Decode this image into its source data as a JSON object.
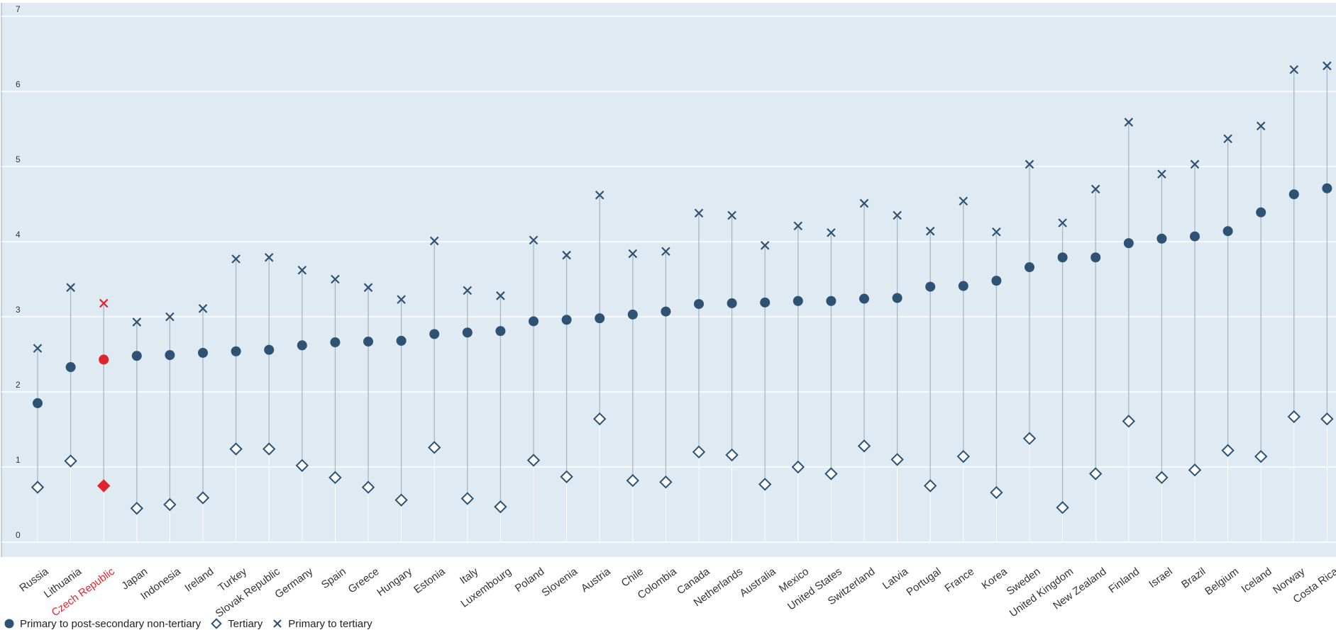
{
  "chart_data": {
    "type": "scatter",
    "ylim": [
      0,
      7
    ],
    "y_ticks": [
      0,
      1,
      2,
      3,
      4,
      5,
      6,
      7
    ],
    "grid": true,
    "categories": [
      "Russia",
      "Lithuania",
      "Czech Republic",
      "Japan",
      "Indonesia",
      "Ireland",
      "Turkey",
      "Slovak Republic",
      "Germany",
      "Spain",
      "Greece",
      "Hungary",
      "Estonia",
      "Italy",
      "Luxembourg",
      "Poland",
      "Slovenia",
      "Austria",
      "Chile",
      "Colombia",
      "Canada",
      "Netherlands",
      "Australia",
      "Mexico",
      "United States",
      "Switzerland",
      "Latvia",
      "Portugal",
      "France",
      "Korea",
      "Sweden",
      "United Kingdom",
      "New Zealand",
      "Finland",
      "Israel",
      "Brazil",
      "Belgium",
      "Iceland",
      "Norway",
      "Costa Rica"
    ],
    "highlight_category": "Czech Republic",
    "series": [
      {
        "name": "Primary to post-secondary non-tertiary",
        "marker": "circle",
        "values": [
          1.85,
          2.33,
          2.43,
          2.48,
          2.49,
          2.52,
          2.54,
          2.56,
          2.62,
          2.66,
          2.67,
          2.68,
          2.77,
          2.79,
          2.81,
          2.94,
          2.96,
          2.98,
          3.03,
          3.07,
          3.17,
          3.18,
          3.19,
          3.21,
          3.21,
          3.24,
          3.25,
          3.4,
          3.41,
          3.48,
          3.66,
          3.79,
          3.79,
          3.98,
          4.04,
          4.07,
          4.14,
          4.39,
          4.63,
          4.71
        ]
      },
      {
        "name": "Tertiary",
        "marker": "diamond",
        "values": [
          0.73,
          1.08,
          0.75,
          0.45,
          0.5,
          0.59,
          1.24,
          1.24,
          1.02,
          0.86,
          0.73,
          0.56,
          1.26,
          0.58,
          0.47,
          1.09,
          0.87,
          1.64,
          0.82,
          0.8,
          1.2,
          1.16,
          0.77,
          1.0,
          0.91,
          1.28,
          1.1,
          0.75,
          1.14,
          0.66,
          1.38,
          0.46,
          0.91,
          1.61,
          0.86,
          0.96,
          1.22,
          1.14,
          1.67,
          1.64
        ]
      },
      {
        "name": "Primary to tertiary",
        "marker": "x",
        "values": [
          2.58,
          3.39,
          3.18,
          2.93,
          3.0,
          3.11,
          3.77,
          3.79,
          3.62,
          3.5,
          3.39,
          3.23,
          4.01,
          3.35,
          3.28,
          4.02,
          3.82,
          4.62,
          3.84,
          3.87,
          4.38,
          4.35,
          3.95,
          4.21,
          4.12,
          4.51,
          4.35,
          4.14,
          4.54,
          4.13,
          5.03,
          4.25,
          4.7,
          5.59,
          4.9,
          5.03,
          5.37,
          5.54,
          6.29,
          6.34
        ]
      }
    ],
    "colors": {
      "marker": "#2e5273",
      "highlight": "#e0242e",
      "plot_bg": "#dfeaf2",
      "grid": "#ffffff",
      "stem": "#a9b6c1"
    }
  }
}
